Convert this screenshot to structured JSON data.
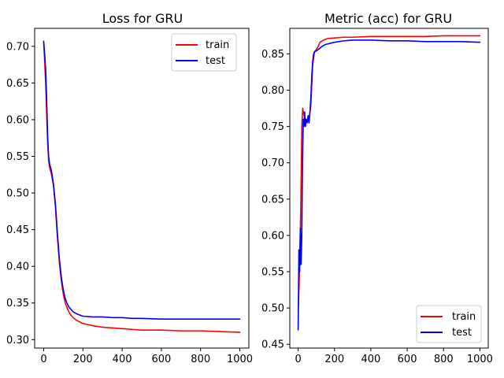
{
  "chart_data": [
    {
      "type": "line",
      "title": "Loss for GRU",
      "xlabel": "",
      "ylabel": "",
      "xlim": [
        -46,
        1046
      ],
      "ylim": [
        0.2885,
        0.7245
      ],
      "xticks": [
        0,
        200,
        400,
        600,
        800,
        1000
      ],
      "xtick_labels": [
        "0",
        "200",
        "400",
        "600",
        "800",
        "1000"
      ],
      "yticks": [
        0.3,
        0.35,
        0.4,
        0.45,
        0.5,
        0.55,
        0.6,
        0.65,
        0.7
      ],
      "ytick_labels": [
        "0.30",
        "0.35",
        "0.40",
        "0.45",
        "0.50",
        "0.55",
        "0.60",
        "0.65",
        "0.70"
      ],
      "legend_position": "top-right",
      "series": [
        {
          "name": "train",
          "color": "#ff0000",
          "x": [
            0,
            5,
            10,
            15,
            20,
            25,
            30,
            40,
            50,
            60,
            70,
            80,
            90,
            100,
            110,
            120,
            130,
            140,
            150,
            170,
            200,
            250,
            300,
            350,
            400,
            450,
            500,
            600,
            700,
            800,
            900,
            1000
          ],
          "y": [
            0.705,
            0.68,
            0.65,
            0.61,
            0.57,
            0.545,
            0.535,
            0.525,
            0.51,
            0.48,
            0.44,
            0.405,
            0.38,
            0.362,
            0.35,
            0.343,
            0.337,
            0.333,
            0.33,
            0.326,
            0.322,
            0.319,
            0.317,
            0.316,
            0.315,
            0.314,
            0.313,
            0.313,
            0.312,
            0.312,
            0.311,
            0.31
          ]
        },
        {
          "name": "test",
          "color": "#0000ff",
          "x": [
            0,
            5,
            10,
            15,
            20,
            25,
            30,
            40,
            50,
            60,
            70,
            80,
            90,
            100,
            110,
            120,
            130,
            140,
            150,
            170,
            200,
            250,
            300,
            350,
            400,
            450,
            500,
            600,
            700,
            800,
            900,
            1000
          ],
          "y": [
            0.707,
            0.69,
            0.67,
            0.63,
            0.58,
            0.55,
            0.54,
            0.53,
            0.512,
            0.485,
            0.445,
            0.41,
            0.385,
            0.368,
            0.356,
            0.349,
            0.344,
            0.341,
            0.338,
            0.335,
            0.332,
            0.331,
            0.331,
            0.33,
            0.33,
            0.329,
            0.329,
            0.328,
            0.328,
            0.328,
            0.328,
            0.328
          ]
        }
      ]
    },
    {
      "type": "line",
      "title": "Metric (acc) for GRU",
      "xlabel": "",
      "ylabel": "",
      "xlim": [
        -46,
        1046
      ],
      "ylim": [
        0.4448,
        0.8852
      ],
      "xticks": [
        0,
        200,
        400,
        600,
        800,
        1000
      ],
      "xtick_labels": [
        "0",
        "200",
        "400",
        "600",
        "800",
        "1000"
      ],
      "yticks": [
        0.45,
        0.5,
        0.55,
        0.6,
        0.65,
        0.7,
        0.75,
        0.8,
        0.85
      ],
      "ytick_labels": [
        "0.45",
        "0.50",
        "0.55",
        "0.60",
        "0.65",
        "0.70",
        "0.75",
        "0.80",
        "0.85"
      ],
      "legend_position": "bottom-right",
      "series": [
        {
          "name": "train",
          "color": "#ff0000",
          "x": [
            0,
            5,
            10,
            15,
            20,
            25,
            30,
            35,
            40,
            50,
            60,
            70,
            80,
            90,
            100,
            110,
            120,
            140,
            160,
            200,
            250,
            300,
            400,
            500,
            600,
            700,
            800,
            900,
            1000
          ],
          "y": [
            0.495,
            0.53,
            0.58,
            0.65,
            0.75,
            0.775,
            0.768,
            0.762,
            0.76,
            0.758,
            0.76,
            0.78,
            0.835,
            0.853,
            0.856,
            0.86,
            0.866,
            0.869,
            0.871,
            0.872,
            0.873,
            0.873,
            0.874,
            0.874,
            0.874,
            0.874,
            0.875,
            0.875,
            0.875
          ]
        },
        {
          "name": "test",
          "color": "#0000ff",
          "x": [
            0,
            4,
            8,
            12,
            16,
            20,
            24,
            28,
            32,
            36,
            40,
            45,
            50,
            55,
            60,
            65,
            70,
            75,
            80,
            85,
            90,
            100,
            110,
            120,
            130,
            150,
            200,
            250,
            300,
            400,
            500,
            600,
            700,
            800,
            900,
            1000
          ],
          "y": [
            0.47,
            0.58,
            0.55,
            0.61,
            0.56,
            0.6,
            0.7,
            0.76,
            0.75,
            0.77,
            0.75,
            0.76,
            0.755,
            0.765,
            0.755,
            0.77,
            0.79,
            0.82,
            0.84,
            0.85,
            0.853,
            0.854,
            0.856,
            0.858,
            0.86,
            0.863,
            0.866,
            0.868,
            0.869,
            0.869,
            0.868,
            0.868,
            0.867,
            0.867,
            0.867,
            0.866
          ]
        }
      ]
    }
  ]
}
